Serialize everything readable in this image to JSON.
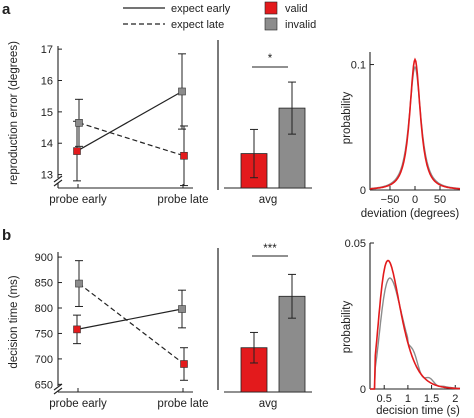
{
  "legend": {
    "line_solid": "expect early",
    "line_dashed": "expect late",
    "valid": "valid",
    "invalid": "invalid",
    "valid_color": "#e31a1c",
    "invalid_color": "#8c8c8c"
  },
  "panels": [
    {
      "letter": "a",
      "ylabel": "reproduction error (degrees)",
      "sig": "*",
      "dist_xlabel": "deviation  (degrees)",
      "dist_ylabel": "probability"
    },
    {
      "letter": "b",
      "ylabel": "decision time (ms)",
      "sig": "***",
      "dist_xlabel": "decision time (s)",
      "dist_ylabel": "probability"
    }
  ],
  "chart_data": [
    {
      "type": "line",
      "panel": "a",
      "categories": [
        "probe early",
        "probe late"
      ],
      "yticks": [
        13,
        14,
        15,
        16,
        17
      ],
      "ylim": [
        12.7,
        17.1
      ],
      "series": [
        {
          "name": "expect early",
          "style": "solid",
          "values": [
            13.75,
            15.65
          ],
          "errors": [
            0.95,
            1.2
          ],
          "marker_colors": [
            "#e31a1c",
            "#8c8c8c"
          ]
        },
        {
          "name": "expect late",
          "style": "dashed",
          "values": [
            14.65,
            13.6
          ],
          "errors": [
            0.75,
            0.95
          ],
          "marker_colors": [
            "#8c8c8c",
            "#e31a1c"
          ]
        }
      ]
    },
    {
      "type": "bar",
      "panel": "a",
      "categories": [
        "avg"
      ],
      "series": [
        {
          "name": "valid",
          "values": [
            13.67
          ],
          "errors": [
            0.77
          ]
        },
        {
          "name": "invalid",
          "values": [
            15.12
          ],
          "errors": [
            0.83
          ]
        }
      ]
    },
    {
      "type": "line",
      "panel": "a",
      "xticks": [
        -50,
        0,
        50
      ],
      "yticks": [
        0,
        0.1
      ],
      "xlim": [
        -90,
        90
      ],
      "ylim": [
        0,
        0.11
      ],
      "xlabel": "deviation  (degrees)",
      "ylabel": "probability",
      "series": [
        {
          "name": "valid",
          "shape": "peak",
          "center": 0,
          "peak": 0.104,
          "width": 15
        },
        {
          "name": "invalid",
          "shape": "peak",
          "center": 0,
          "peak": 0.098,
          "width": 16.5
        }
      ]
    },
    {
      "type": "line",
      "panel": "b",
      "categories": [
        "probe early",
        "probe late"
      ],
      "yticks": [
        650,
        700,
        750,
        800,
        850,
        900
      ],
      "ylim": [
        635,
        910
      ],
      "series": [
        {
          "name": "expect early",
          "style": "solid",
          "values": [
            758,
            798
          ],
          "errors": [
            28,
            37
          ],
          "marker_colors": [
            "#e31a1c",
            "#8c8c8c"
          ]
        },
        {
          "name": "expect late",
          "style": "dashed",
          "values": [
            848,
            690
          ],
          "errors": [
            45,
            32
          ],
          "marker_colors": [
            "#8c8c8c",
            "#e31a1c"
          ]
        }
      ]
    },
    {
      "type": "bar",
      "panel": "b",
      "categories": [
        "avg"
      ],
      "series": [
        {
          "name": "valid",
          "values": [
            722
          ],
          "errors": [
            30
          ]
        },
        {
          "name": "invalid",
          "values": [
            823
          ],
          "errors": [
            43
          ]
        }
      ]
    },
    {
      "type": "line",
      "panel": "b",
      "xticks": [
        0.5,
        1,
        1.5,
        2
      ],
      "yticks": [
        0,
        0.05
      ],
      "xlim": [
        0.2,
        2.1
      ],
      "ylim": [
        0,
        0.05
      ],
      "xlabel": "decision time (s)",
      "ylabel": "probability",
      "series": [
        {
          "name": "valid",
          "shape": "skewed",
          "mode": 0.58,
          "peak": 0.044
        },
        {
          "name": "invalid",
          "shape": "skewed",
          "mode": 0.62,
          "peak": 0.038
        }
      ]
    }
  ]
}
